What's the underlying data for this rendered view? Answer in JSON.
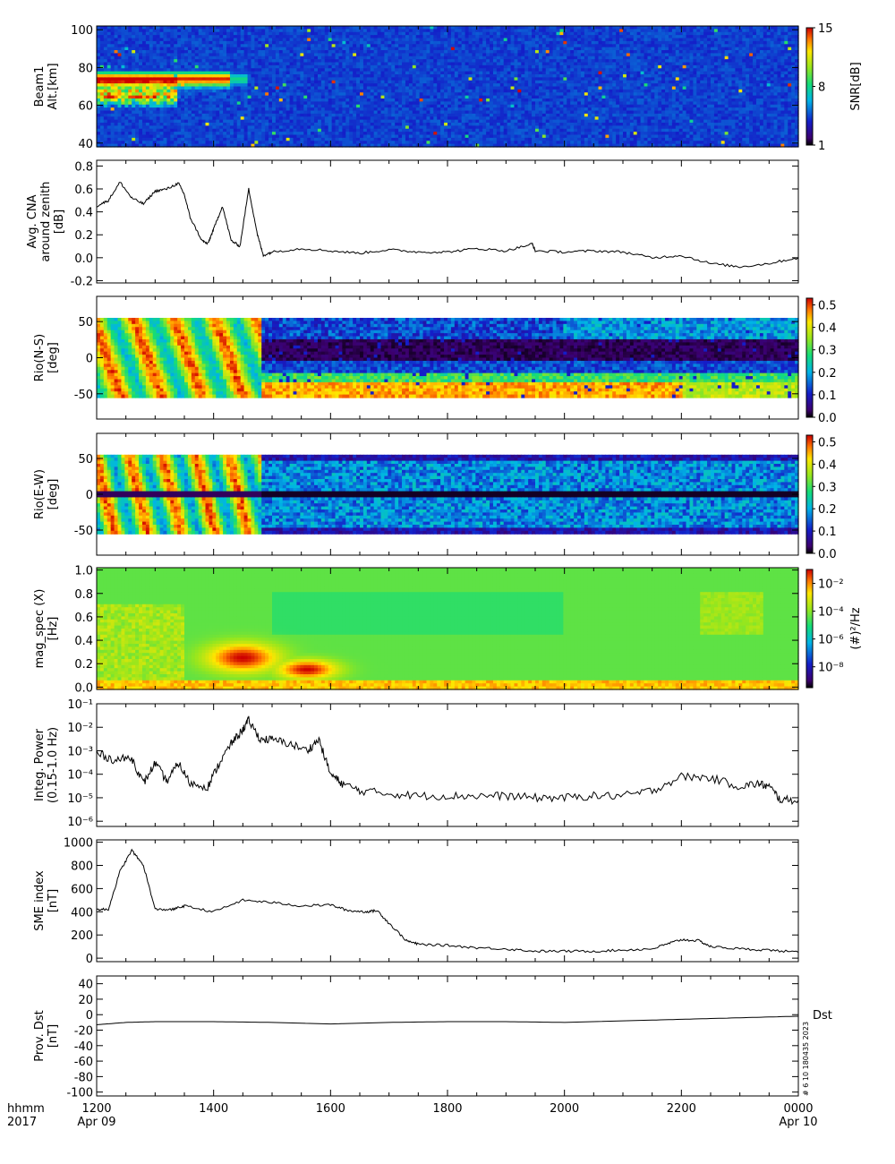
{
  "x_axis": {
    "row_label_1": "hhmm",
    "row_label_2": "2017",
    "ticks": [
      "1200",
      "1400",
      "1600",
      "1800",
      "2000",
      "2200",
      "0000"
    ],
    "start_date": "Apr 09",
    "end_date": "Apr 10"
  },
  "colors": {
    "line": "#000000",
    "background": "#ffffff",
    "spectrogram_low": "#1e1e78",
    "spectrogram_high": "#c80000"
  },
  "side_labels": {
    "dst_tag": "Dst",
    "stamp": "# 6 10 180435 2023"
  },
  "chart_data": [
    {
      "id": "beam1",
      "type": "heatmap",
      "ylabel_lines": [
        "Beam1",
        "Alt.[km]"
      ],
      "ylim": [
        38,
        102
      ],
      "yticks": [
        {
          "v": 100,
          "t": "100"
        },
        {
          "v": 80,
          "t": "80"
        },
        {
          "v": 60,
          "t": "60"
        },
        {
          "v": 40,
          "t": "40"
        }
      ],
      "colorbar": {
        "label": "SNR[dB]",
        "scale": "linear",
        "ticks": [
          "15",
          "8",
          "1"
        ],
        "tick_values": [
          15,
          8,
          1
        ],
        "range": [
          1,
          15
        ]
      }
    },
    {
      "id": "cna",
      "type": "line",
      "ylabel_lines": [
        "Avg. CNA",
        "around zenith",
        "[dB]"
      ],
      "ylim": [
        -0.22,
        0.85
      ],
      "yticks": [
        {
          "v": 0.8,
          "t": "0.8"
        },
        {
          "v": 0.6,
          "t": "0.6"
        },
        {
          "v": 0.4,
          "t": "0.4"
        },
        {
          "v": 0.2,
          "t": "0.2"
        },
        {
          "v": 0.0,
          "t": "0.0"
        },
        {
          "v": -0.2,
          "t": "-0.2"
        }
      ],
      "series": [
        {
          "x": [
            12.0,
            12.2,
            12.4,
            12.6,
            12.8,
            13.0,
            13.2,
            13.4,
            13.5,
            13.6,
            13.8,
            13.9,
            14.0,
            14.15,
            14.3,
            14.45,
            14.6,
            14.75,
            14.85,
            15.0,
            15.5,
            16.0,
            16.5,
            17.0,
            17.5,
            18.0,
            18.5,
            19.0,
            19.45,
            19.5,
            20.0,
            20.5,
            21.0,
            21.5,
            22.0,
            22.5,
            23.0,
            23.5,
            24.0
          ],
          "y": [
            0.45,
            0.5,
            0.66,
            0.52,
            0.47,
            0.58,
            0.6,
            0.65,
            0.55,
            0.35,
            0.15,
            0.12,
            0.25,
            0.45,
            0.15,
            0.1,
            0.6,
            0.2,
            0.02,
            0.05,
            0.08,
            0.06,
            0.04,
            0.07,
            0.05,
            0.05,
            0.08,
            0.06,
            0.12,
            0.06,
            0.05,
            0.06,
            0.05,
            0.0,
            0.02,
            -0.05,
            -0.08,
            -0.05,
            0.0
          ]
        }
      ]
    },
    {
      "id": "rio_ns",
      "type": "heatmap",
      "ylabel_lines": [
        "Rio(N-S)",
        "[deg]"
      ],
      "ylim": [
        -85,
        85
      ],
      "yticks": [
        {
          "v": 50,
          "t": "50"
        },
        {
          "v": 0,
          "t": "0"
        },
        {
          "v": -50,
          "t": "-50"
        }
      ],
      "colorbar": {
        "label": "",
        "scale": "linear",
        "ticks": [
          "0.5",
          "0.4",
          "0.3",
          "0.2",
          "0.1",
          "0.0"
        ],
        "tick_values": [
          0.5,
          0.4,
          0.3,
          0.2,
          0.1,
          0.0
        ],
        "range": [
          0.0,
          0.53
        ]
      }
    },
    {
      "id": "rio_ew",
      "type": "heatmap",
      "ylabel_lines": [
        "Rio(E-W)",
        "[deg]"
      ],
      "ylim": [
        -85,
        85
      ],
      "yticks": [
        {
          "v": 50,
          "t": "50"
        },
        {
          "v": 0,
          "t": "0"
        },
        {
          "v": -50,
          "t": "-50"
        }
      ],
      "colorbar": {
        "label": "",
        "scale": "linear",
        "ticks": [
          "0.5",
          "0.4",
          "0.3",
          "0.2",
          "0.1",
          "0.0"
        ],
        "tick_values": [
          0.5,
          0.4,
          0.3,
          0.2,
          0.1,
          0.0
        ],
        "range": [
          0.0,
          0.53
        ]
      }
    },
    {
      "id": "magspec",
      "type": "heatmap",
      "ylabel_lines": [
        "mag_spec (X)",
        "[Hz]"
      ],
      "ylim": [
        -0.02,
        1.02
      ],
      "yticks": [
        {
          "v": 1.0,
          "t": "1.0"
        },
        {
          "v": 0.8,
          "t": "0.8"
        },
        {
          "v": 0.6,
          "t": "0.6"
        },
        {
          "v": 0.4,
          "t": "0.4"
        },
        {
          "v": 0.2,
          "t": "0.2"
        },
        {
          "v": 0.0,
          "t": "0.0"
        }
      ],
      "colorbar": {
        "label": "(#)²/Hz",
        "scale": "log",
        "ticks": [
          "10⁻²",
          "10⁻⁴",
          "10⁻⁶",
          "10⁻⁸"
        ],
        "tick_values": [
          -2,
          -4,
          -6,
          -8
        ],
        "range": [
          -9.5,
          -1
        ]
      }
    },
    {
      "id": "power",
      "type": "line",
      "scale": "log",
      "ylabel_lines": [
        "Integ. Power",
        "(0.15-1.0 Hz)"
      ],
      "ylim": [
        6e-07,
        0.1
      ],
      "yticks": [
        {
          "v": 0.1,
          "t": "10⁻¹"
        },
        {
          "v": 0.01,
          "t": "10⁻²"
        },
        {
          "v": 0.001,
          "t": "10⁻³"
        },
        {
          "v": 0.0001,
          "t": "10⁻⁴"
        },
        {
          "v": 1e-05,
          "t": "10⁻⁵"
        },
        {
          "v": 1e-06,
          "t": "10⁻⁶"
        }
      ],
      "series": [
        {
          "x": [
            12.0,
            12.3,
            12.6,
            12.8,
            13.0,
            13.2,
            13.4,
            13.6,
            13.9,
            14.1,
            14.3,
            14.5,
            14.6,
            14.8,
            15.0,
            15.3,
            15.6,
            15.8,
            16.0,
            16.2,
            16.5,
            17.0,
            17.5,
            18.0,
            18.5,
            19.0,
            19.5,
            20.0,
            20.5,
            21.0,
            21.5,
            22.0,
            22.5,
            23.0,
            23.3,
            23.5,
            23.7,
            24.0
          ],
          "y": [
            0.0008,
            0.0004,
            0.0005,
            4e-05,
            0.0003,
            5e-05,
            0.0003,
            4e-05,
            3e-05,
            0.0003,
            0.002,
            0.008,
            0.02,
            0.003,
            0.003,
            0.002,
            0.001,
            0.003,
            0.0001,
            4e-05,
            2e-05,
            1.5e-05,
            1.2e-05,
            1.2e-05,
            1.2e-05,
            1.2e-05,
            1e-05,
            1e-05,
            1.2e-05,
            1.2e-05,
            2e-05,
            8e-05,
            7e-05,
            3e-05,
            4e-05,
            3e-05,
            8e-06,
            8e-06
          ]
        }
      ]
    },
    {
      "id": "sme",
      "type": "line",
      "ylabel_lines": [
        "SME index",
        "[nT]"
      ],
      "ylim": [
        -30,
        1020
      ],
      "yticks": [
        {
          "v": 1000,
          "t": "1000"
        },
        {
          "v": 800,
          "t": "800"
        },
        {
          "v": 600,
          "t": "600"
        },
        {
          "v": 400,
          "t": "400"
        },
        {
          "v": 200,
          "t": "200"
        },
        {
          "v": 0,
          "t": "0"
        }
      ],
      "series": [
        {
          "x": [
            12.0,
            12.2,
            12.4,
            12.6,
            12.8,
            13.0,
            13.3,
            13.5,
            14.0,
            14.5,
            15.0,
            15.5,
            16.0,
            16.3,
            16.6,
            16.8,
            17.0,
            17.3,
            17.5,
            18.0,
            18.5,
            19.0,
            19.5,
            20.0,
            20.5,
            21.0,
            21.5,
            21.8,
            22.0,
            22.3,
            22.5,
            23.0,
            23.5,
            24.0
          ],
          "y": [
            420,
            420,
            750,
            930,
            800,
            420,
            420,
            450,
            400,
            500,
            480,
            450,
            460,
            410,
            400,
            410,
            300,
            150,
            120,
            110,
            90,
            80,
            60,
            60,
            60,
            70,
            80,
            130,
            160,
            150,
            100,
            80,
            70,
            50
          ]
        }
      ]
    },
    {
      "id": "dst",
      "type": "line",
      "ylabel_lines": [
        "Prov. Dst",
        "[nT]"
      ],
      "ylim": [
        -105,
        50
      ],
      "yticks": [
        {
          "v": 40,
          "t": "40"
        },
        {
          "v": 20,
          "t": "20"
        },
        {
          "v": 0,
          "t": "0"
        },
        {
          "v": -20,
          "t": "-20"
        },
        {
          "v": -40,
          "t": "-40"
        },
        {
          "v": -60,
          "t": "-60"
        },
        {
          "v": -80,
          "t": "-80"
        },
        {
          "v": -100,
          "t": "-100"
        }
      ],
      "series": [
        {
          "x": [
            12.0,
            12.5,
            13.0,
            14.0,
            15.0,
            16.0,
            17.0,
            18.0,
            19.0,
            20.0,
            21.0,
            22.0,
            23.0,
            24.0
          ],
          "y": [
            -13,
            -10,
            -9,
            -9,
            -10,
            -12,
            -10,
            -9,
            -9,
            -10,
            -8,
            -6,
            -4,
            -2
          ]
        }
      ]
    }
  ]
}
